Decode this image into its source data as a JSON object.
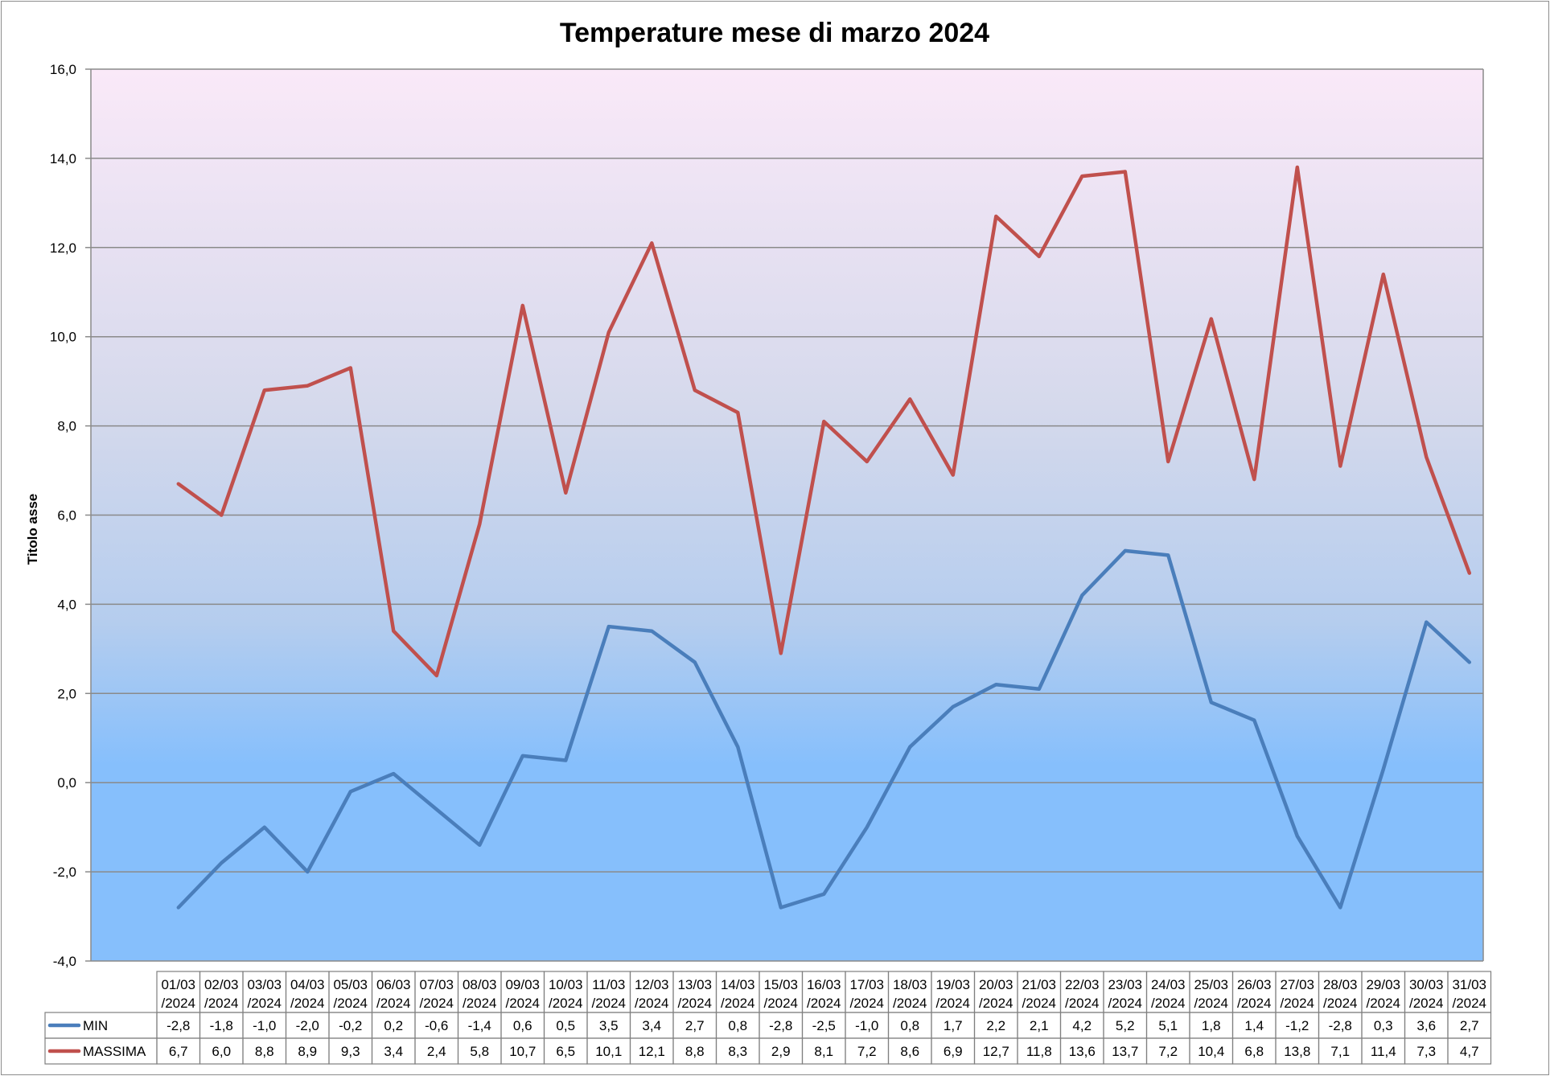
{
  "chart_data": {
    "type": "line",
    "title": "Temperature mese di marzo 2024",
    "ylabel": "Titolo asse",
    "ylim": [
      -4,
      16
    ],
    "ytick_step": 2,
    "ytick_labels": [
      "-4,0",
      "-2,0",
      "0,0",
      "2,0",
      "4,0",
      "6,0",
      "8,0",
      "10,0",
      "12,0",
      "14,0",
      "16,0"
    ],
    "grid": true,
    "legend": "data-table",
    "categories": [
      "01/03/2024",
      "02/03/2024",
      "03/03/2024",
      "04/03/2024",
      "05/03/2024",
      "06/03/2024",
      "07/03/2024",
      "08/03/2024",
      "09/03/2024",
      "10/03/2024",
      "11/03/2024",
      "12/03/2024",
      "13/03/2024",
      "14/03/2024",
      "15/03/2024",
      "16/03/2024",
      "17/03/2024",
      "18/03/2024",
      "19/03/2024",
      "20/03/2024",
      "21/03/2024",
      "22/03/2024",
      "23/03/2024",
      "24/03/2024",
      "25/03/2024",
      "26/03/2024",
      "27/03/2024",
      "28/03/2024",
      "29/03/2024",
      "30/03/2024",
      "31/03/2024"
    ],
    "series": [
      {
        "name": "MIN",
        "color": "#4a7ebb",
        "values": [
          -2.8,
          -1.8,
          -1.0,
          -2.0,
          -0.2,
          0.2,
          -0.6,
          -1.4,
          0.6,
          0.5,
          3.5,
          3.4,
          2.7,
          0.8,
          -2.8,
          -2.5,
          -1.0,
          0.8,
          1.7,
          2.2,
          2.1,
          4.2,
          5.2,
          5.1,
          1.8,
          1.4,
          -1.2,
          -2.8,
          0.3,
          3.6,
          2.7
        ],
        "labels": [
          "-2,8",
          "-1,8",
          "-1,0",
          "-2,0",
          "-0,2",
          "0,2",
          "-0,6",
          "-1,4",
          "0,6",
          "0,5",
          "3,5",
          "3,4",
          "2,7",
          "0,8",
          "-2,8",
          "-2,5",
          "-1,0",
          "0,8",
          "1,7",
          "2,2",
          "2,1",
          "4,2",
          "5,2",
          "5,1",
          "1,8",
          "1,4",
          "-1,2",
          "-2,8",
          "0,3",
          "3,6",
          "2,7"
        ]
      },
      {
        "name": "MASSIMA",
        "color": "#c0504d",
        "values": [
          6.7,
          6.0,
          8.8,
          8.9,
          9.3,
          3.4,
          2.4,
          5.8,
          10.7,
          6.5,
          10.1,
          12.1,
          8.8,
          8.3,
          2.9,
          8.1,
          7.2,
          8.6,
          6.9,
          12.7,
          11.8,
          13.6,
          13.7,
          7.2,
          10.4,
          6.8,
          13.8,
          7.1,
          11.4,
          7.3,
          4.7
        ],
        "labels": [
          "6,7",
          "6,0",
          "8,8",
          "8,9",
          "9,3",
          "3,4",
          "2,4",
          "5,8",
          "10,7",
          "6,5",
          "10,1",
          "12,1",
          "8,8",
          "8,3",
          "2,9",
          "8,1",
          "7,2",
          "8,6",
          "6,9",
          "12,7",
          "11,8",
          "13,6",
          "13,7",
          "7,2",
          "10,4",
          "6,8",
          "13,8",
          "7,1",
          "11,4",
          "7,3",
          "4,7"
        ]
      }
    ]
  }
}
